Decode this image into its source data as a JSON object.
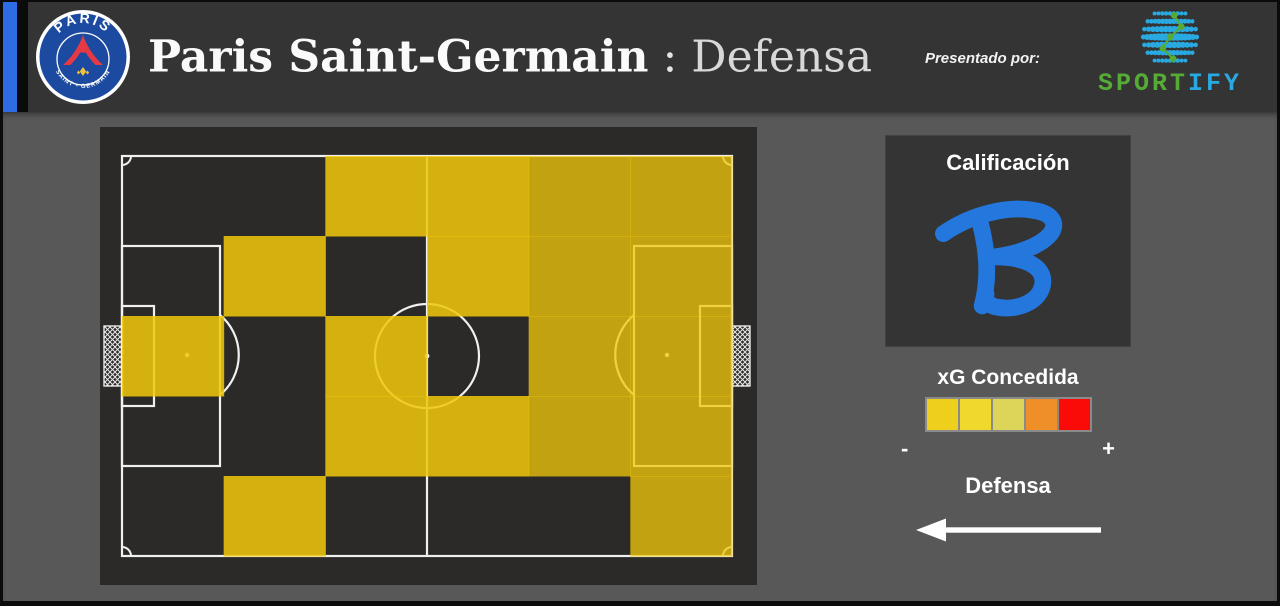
{
  "header": {
    "title_team": "Paris Saint-Germain",
    "title_sep": " : ",
    "title_section": "Defensa",
    "presented_by": "Presentado por:",
    "brand_green": "SPORT",
    "brand_blue": "IFY",
    "crest_top": "PARIS",
    "crest_bottom": "SAINT - GERMAIN",
    "colors": {
      "accent_bar": "#2d6ce4",
      "brand_green": "#56ab36",
      "brand_blue": "#29a9e1"
    }
  },
  "rating": {
    "title": "Calificación",
    "grade": "B",
    "grade_color": "#2478dd"
  },
  "chart_data": {
    "type": "heatmap",
    "title": "Paris Saint-Germain : Defensa",
    "metric": "xG Concedida",
    "grid_rows": 5,
    "grid_cols": 6,
    "cells": [
      [
        "none",
        "none",
        "bright",
        "bright",
        "gold",
        "gold"
      ],
      [
        "none",
        "bright",
        "none",
        "bright",
        "gold",
        "gold"
      ],
      [
        "bright",
        "none",
        "bright",
        "none",
        "gold",
        "gold"
      ],
      [
        "none",
        "none",
        "bright",
        "bright",
        "gold",
        "gold"
      ],
      [
        "none",
        "bright",
        "none",
        "none",
        "none",
        "gold"
      ]
    ],
    "cell_colors": {
      "bright": "rgba(240,199,10,0.86)",
      "gold": "rgba(240,199,10,0.77)",
      "none": "transparent"
    },
    "pitch_bg": "#2b2a28",
    "pitch_line_color": "#f0f0f0",
    "legend_title": "xG Concedida",
    "legend_scale": [
      "#eecf1c",
      "#f0d92c",
      "#ddd45a",
      "#ee8f28",
      "#fb0b07"
    ],
    "legend_min": "-",
    "legend_max": "+",
    "direction_label": "Defensa",
    "direction": "left"
  }
}
